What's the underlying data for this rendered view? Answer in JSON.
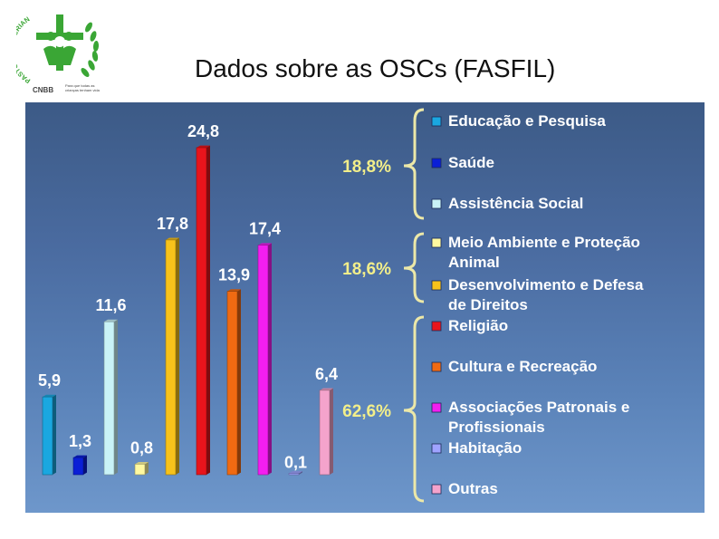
{
  "title": "Dados sobre as OSCs (FASFIL)",
  "logo": {
    "text_arc": "PASTORAL DA CRIANÇA",
    "org": "CNBB",
    "tagline_1": "Para que todas as",
    "tagline_2": "crianças tenham vida",
    "color": "#3aa635"
  },
  "chart_data": {
    "type": "bar",
    "categories": [
      "Educação e Pesquisa",
      "Saúde",
      "Assistência Social",
      "Meio Ambiente e Proteção Animal",
      "Desenvolvimento e Defesa de Direitos",
      "Religião",
      "Cultura e Recreação",
      "Associações Patronais e Profissionais",
      "Habitação",
      "Outras"
    ],
    "values": [
      5.9,
      1.3,
      11.6,
      0.8,
      17.8,
      24.8,
      13.9,
      17.4,
      0.1,
      6.4
    ],
    "value_labels": [
      "5,9",
      "1,3",
      "11,6",
      "0,8",
      "17,8",
      "24,8",
      "13,9",
      "17,4",
      "0,1",
      "6,4"
    ],
    "colors": [
      "#1aa7e0",
      "#0a1fd6",
      "#c9f3f7",
      "#fff9a0",
      "#f7c21b",
      "#e8141c",
      "#f06a12",
      "#f31ef0",
      "#9fa3ff",
      "#f4a3cc"
    ],
    "legend_labels_lines": [
      [
        "Educação e Pesquisa"
      ],
      [
        "Saúde"
      ],
      [
        "Assistência Social"
      ],
      [
        "Meio Ambiente e Proteção",
        "Animal"
      ],
      [
        "Desenvolvimento e Defesa",
        "de Direitos"
      ],
      [
        "Religião"
      ],
      [
        "Cultura e Recreação"
      ],
      [
        "Associações Patronais e",
        "Profissionais"
      ],
      [
        "Habitação"
      ],
      [
        "Outras"
      ]
    ],
    "groups": [
      {
        "label": "18,8%",
        "members": [
          0,
          1,
          2
        ]
      },
      {
        "label": "18,6%",
        "members": [
          3,
          4
        ]
      },
      {
        "label": "62,6%",
        "members": [
          5,
          6,
          7,
          8,
          9
        ]
      }
    ],
    "ylim": [
      0,
      24.8
    ],
    "legend_position": "right",
    "grid": false,
    "xlabel": "",
    "ylabel": ""
  }
}
